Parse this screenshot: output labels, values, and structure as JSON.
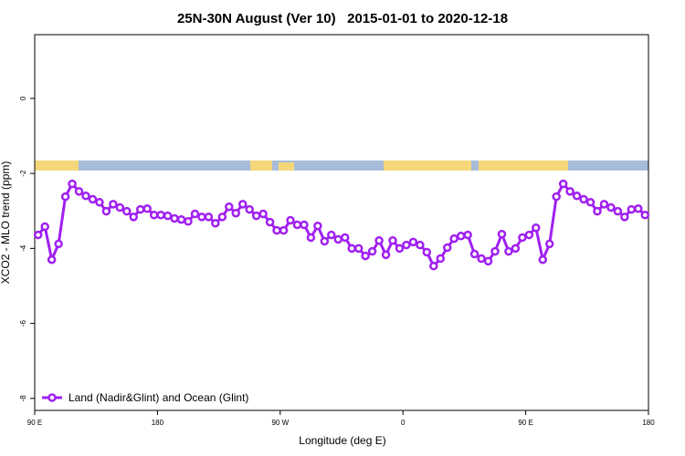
{
  "chart_data": {
    "type": "line",
    "title": "25N-30N August (Ver 10)   2015-01-01 to 2020-12-18",
    "x_label": "Longitude (deg E)",
    "y_label": "XCO2 - MLO trend (ppm)",
    "xlim": [
      90,
      540
    ],
    "ylim": [
      -8.32,
      1.7
    ],
    "xticks": [
      {
        "value": 90,
        "label": "90 E"
      },
      180,
      {
        "value": 270,
        "label": "90 W"
      },
      {
        "value": 360,
        "label": "0"
      },
      {
        "value": 450,
        "label": "90 E"
      },
      {
        "value": 540,
        "label": "180"
      }
    ],
    "yticks": [
      0,
      -2,
      -4,
      -6,
      -8
    ],
    "grid": false,
    "legend": "bottom-left",
    "x": [
      92.5,
      97.5,
      102.5,
      107.5,
      112.5,
      117.5,
      122.5,
      127.5,
      132.5,
      137.5,
      142.5,
      147.5,
      152.5,
      157.5,
      162.5,
      167.5,
      172.5,
      177.5,
      182.5,
      187.5,
      192.5,
      197.5,
      202.5,
      207.5,
      212.5,
      217.5,
      222.5,
      227.5,
      232.5,
      237.5,
      242.5,
      247.5,
      252.5,
      257.5,
      262.5,
      267.5,
      272.5,
      277.5,
      282.5,
      287.5,
      292.5,
      297.5,
      302.5,
      307.5,
      312.5,
      317.5,
      322.5,
      327.5,
      332.5,
      337.5,
      342.5,
      347.5,
      352.5,
      357.5,
      362.5,
      367.5,
      372.5,
      377.5,
      382.5,
      387.5,
      392.5,
      397.5,
      402.5,
      407.5,
      412.5,
      417.5,
      422.5,
      427.5,
      432.5,
      437.5,
      442.5,
      447.5,
      452.5,
      457.5,
      462.5,
      467.5,
      472.5,
      477.5,
      482.5,
      487.5,
      492.5,
      497.5,
      502.5,
      507.5,
      512.5,
      517.5,
      522.5,
      527.5,
      532.5,
      537.5
    ],
    "series": [
      {
        "name": "Land (Nadir&Glint) and Ocean (Glint)",
        "color": "#a020f0",
        "values": [
          -3.64,
          -3.42,
          -4.3,
          -3.88,
          -2.62,
          -2.28,
          -2.48,
          -2.6,
          -2.69,
          -2.77,
          -3.01,
          -2.82,
          -2.91,
          -3.01,
          -3.16,
          -2.96,
          -2.94,
          -3.11,
          -3.11,
          -3.13,
          -3.2,
          -3.23,
          -3.28,
          -3.08,
          -3.16,
          -3.16,
          -3.33,
          -3.16,
          -2.89,
          -3.06,
          -2.82,
          -2.96,
          -3.13,
          -3.08,
          -3.3,
          -3.52,
          -3.52,
          -3.25,
          -3.37,
          -3.37,
          -3.71,
          -3.4,
          -3.81,
          -3.64,
          -3.76,
          -3.71,
          -4.0,
          -4.0,
          -4.2,
          -4.08,
          -3.79,
          -4.17,
          -3.79,
          -4.0,
          -3.91,
          -3.83,
          -3.91,
          -4.1,
          -4.47,
          -4.27,
          -3.98,
          -3.74,
          -3.67,
          -3.64,
          -4.15,
          -4.27,
          -4.34,
          -4.08,
          -3.62,
          -4.08,
          -4.0,
          -3.71,
          -3.64,
          -3.45,
          -4.3,
          -3.88,
          -2.62,
          -2.28,
          -2.48,
          -2.6,
          -2.69,
          -2.77,
          -3.01,
          -2.82,
          -2.91,
          -3.01,
          -3.16,
          -2.96,
          -2.94,
          -3.11
        ]
      }
    ]
  }
}
